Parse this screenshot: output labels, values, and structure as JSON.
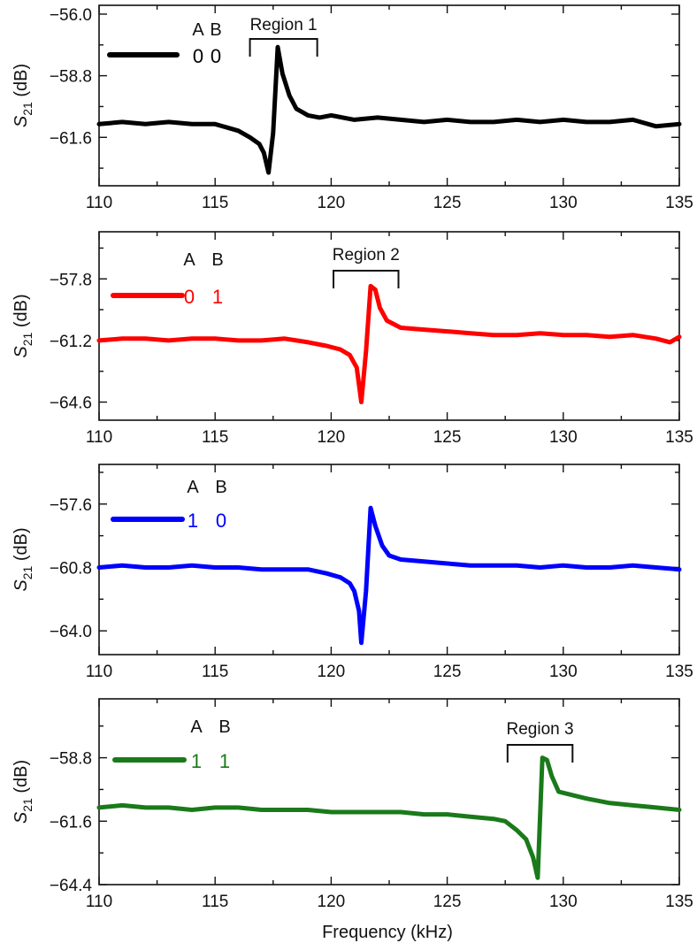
{
  "xlabel": "Frequency (kHz)",
  "ylabel_main": "S",
  "ylabel_sub": "21",
  "ylabel_unit": " (dB)",
  "legend_header_a": "A",
  "legend_header_b": "B",
  "chart_data": [
    {
      "type": "line",
      "color": "#000000",
      "legend_a": "0",
      "legend_b": "0",
      "region_label": "Region 1",
      "region_range": [
        116.5,
        119.4
      ],
      "xlim": [
        110,
        135
      ],
      "ylim": [
        -63.8,
        -55.6
      ],
      "yticks": [
        -56.0,
        -58.8,
        -61.6
      ],
      "ytick_labels": [
        "-56.0",
        "-58.8",
        "-61.6"
      ],
      "xticks": [
        110,
        115,
        120,
        125,
        130,
        135
      ],
      "xtick_labels": [
        "110",
        "115",
        "120",
        "125",
        "130",
        "135"
      ],
      "x": [
        110.0,
        111.0,
        112.0,
        113.0,
        114.0,
        115.0,
        116.0,
        116.5,
        116.9,
        117.1,
        117.3,
        117.5,
        117.7,
        117.9,
        118.2,
        118.5,
        119.0,
        119.5,
        120.0,
        121.0,
        122.0,
        123.0,
        124.0,
        125.0,
        126.0,
        127.0,
        128.0,
        129.0,
        130.0,
        131.0,
        132.0,
        133.0,
        134.0,
        135.0
      ],
      "y": [
        -61.0,
        -60.9,
        -61.0,
        -60.9,
        -61.0,
        -61.0,
        -61.3,
        -61.6,
        -61.9,
        -62.3,
        -63.2,
        -61.4,
        -57.5,
        -58.7,
        -59.7,
        -60.3,
        -60.6,
        -60.7,
        -60.6,
        -60.8,
        -60.7,
        -60.8,
        -60.9,
        -60.8,
        -60.9,
        -60.9,
        -60.8,
        -60.9,
        -60.8,
        -60.9,
        -60.9,
        -60.8,
        -61.1,
        -61.0
      ]
    },
    {
      "type": "line",
      "color": "#ff0000",
      "legend_a": "0",
      "legend_b": "1",
      "region_label": "Region 2",
      "region_range": [
        120.1,
        122.9
      ],
      "xlim": [
        110,
        135
      ],
      "ylim": [
        -65.6,
        -55.2
      ],
      "yticks": [
        -57.8,
        -61.2,
        -64.6
      ],
      "ytick_labels": [
        "-57.8",
        "-61.2",
        "-64.6"
      ],
      "xticks": [
        110,
        115,
        120,
        125,
        130,
        135
      ],
      "xtick_labels": [
        "110",
        "115",
        "120",
        "125",
        "130",
        "135"
      ],
      "x": [
        110.0,
        111.0,
        112.0,
        113.0,
        114.0,
        115.0,
        116.0,
        117.0,
        118.0,
        119.0,
        119.8,
        120.4,
        120.8,
        121.1,
        121.3,
        121.5,
        121.7,
        121.9,
        122.1,
        122.4,
        123.0,
        124.0,
        125.0,
        126.0,
        127.0,
        128.0,
        129.0,
        130.0,
        131.0,
        132.0,
        133.0,
        134.0,
        134.6,
        135.0
      ],
      "y": [
        -61.2,
        -61.1,
        -61.1,
        -61.2,
        -61.1,
        -61.1,
        -61.2,
        -61.2,
        -61.1,
        -61.3,
        -61.5,
        -61.7,
        -62.0,
        -62.7,
        -64.6,
        -61.8,
        -58.2,
        -58.4,
        -59.4,
        -60.1,
        -60.5,
        -60.6,
        -60.7,
        -60.8,
        -60.9,
        -60.9,
        -60.8,
        -60.9,
        -60.9,
        -61.0,
        -60.9,
        -61.1,
        -61.3,
        -61.0
      ]
    },
    {
      "type": "line",
      "color": "#0000ff",
      "legend_a": "1",
      "legend_b": "0",
      "xlim": [
        110,
        135
      ],
      "ylim": [
        -65.2,
        -55.6
      ],
      "yticks": [
        -57.6,
        -60.8,
        -64.0
      ],
      "ytick_labels": [
        "-57.6",
        "-60.8",
        "-64.0"
      ],
      "xticks": [
        110,
        115,
        120,
        125,
        130,
        135
      ],
      "xtick_labels": [
        "110",
        "115",
        "120",
        "125",
        "130",
        "135"
      ],
      "x": [
        110.0,
        111.0,
        112.0,
        113.0,
        114.0,
        115.0,
        116.0,
        117.0,
        118.0,
        119.0,
        119.8,
        120.4,
        120.8,
        121.0,
        121.2,
        121.3,
        121.5,
        121.7,
        121.9,
        122.2,
        122.5,
        123.0,
        124.0,
        125.0,
        126.0,
        127.0,
        128.0,
        129.0,
        130.0,
        131.0,
        132.0,
        133.0,
        134.0,
        135.0
      ],
      "y": [
        -60.8,
        -60.7,
        -60.8,
        -60.8,
        -60.7,
        -60.8,
        -60.8,
        -60.9,
        -60.9,
        -60.9,
        -61.1,
        -61.3,
        -61.6,
        -62.0,
        -63.0,
        -64.6,
        -62.0,
        -57.8,
        -58.7,
        -59.7,
        -60.2,
        -60.4,
        -60.5,
        -60.6,
        -60.7,
        -60.7,
        -60.7,
        -60.8,
        -60.7,
        -60.8,
        -60.8,
        -60.7,
        -60.8,
        -60.9
      ]
    },
    {
      "type": "line",
      "color": "#1a7a1a",
      "legend_a": "1",
      "legend_b": "1",
      "region_label": "Region 3",
      "region_range": [
        127.6,
        130.4
      ],
      "xlim": [
        110,
        135
      ],
      "ylim": [
        -64.4,
        -56.2
      ],
      "yticks": [
        -58.8,
        -61.6,
        -64.4
      ],
      "ytick_labels": [
        "-58.8",
        "-61.6",
        "-64.4"
      ],
      "xticks": [
        110,
        115,
        120,
        125,
        130,
        135
      ],
      "xtick_labels": [
        "110",
        "115",
        "120",
        "125",
        "130",
        "135"
      ],
      "x": [
        110.0,
        111.0,
        112.0,
        113.0,
        114.0,
        115.0,
        116.0,
        117.0,
        118.0,
        119.0,
        120.0,
        121.0,
        122.0,
        123.0,
        124.0,
        125.0,
        126.0,
        127.0,
        127.5,
        128.0,
        128.4,
        128.7,
        128.9,
        129.1,
        129.3,
        129.5,
        129.8,
        130.2,
        131.0,
        132.0,
        133.0,
        134.0,
        135.0
      ],
      "y": [
        -61.0,
        -60.9,
        -61.0,
        -61.0,
        -61.1,
        -61.0,
        -61.0,
        -61.1,
        -61.1,
        -61.1,
        -61.2,
        -61.2,
        -61.2,
        -61.2,
        -61.3,
        -61.3,
        -61.4,
        -61.5,
        -61.6,
        -62.0,
        -62.4,
        -63.2,
        -64.1,
        -58.8,
        -58.9,
        -59.6,
        -60.3,
        -60.4,
        -60.6,
        -60.8,
        -60.9,
        -61.0,
        -61.1
      ]
    }
  ]
}
